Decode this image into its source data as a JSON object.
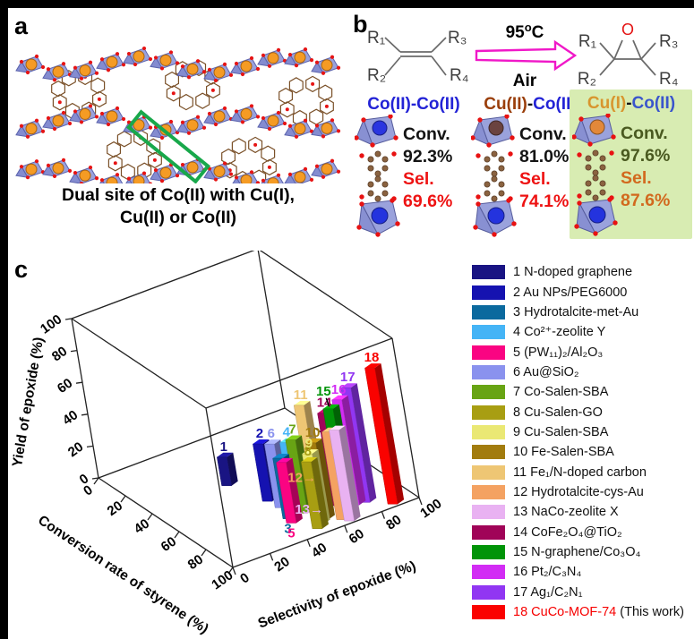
{
  "panel_a": {
    "label": "a",
    "caption_line1": "Dual site of Co(II) with Cu(I),",
    "caption_line2": "Cu(II) or Co(II)",
    "highlight_box_color": "#18a84b"
  },
  "panel_b": {
    "label": "b",
    "reaction": {
      "r1": "R₁",
      "r2": "R₂",
      "r3": "R₃",
      "r4": "R₄",
      "o_label": "O",
      "temp": "95",
      "temp_sup": "o",
      "temp_unit": "C",
      "air": "Air",
      "arrow_color": "#f018c8"
    },
    "catalysts": [
      {
        "title_left": "Co(II)",
        "title_left_color": "#2323d6",
        "title_sep": "-",
        "title_sep_color": "#2323d6",
        "title_right": "Co(II)",
        "title_right_color": "#2323d6",
        "conv_label": "Conv.",
        "conv_value": "92.3%",
        "conv_color": "#141414",
        "sel_label": "Sel.",
        "sel_value": "69.6%",
        "sel_color": "#ee1313",
        "top_sphere_color": "#2a35e0",
        "bottom_sphere_color": "#2433de",
        "highlighted": false
      },
      {
        "title_left": "Cu(II)",
        "title_left_color": "#9a3e0a",
        "title_sep": "-",
        "title_sep_color": "#141414",
        "title_right": "Co(II)",
        "title_right_color": "#2323d6",
        "conv_label": "Conv.",
        "conv_value": "81.0%",
        "conv_color": "#141414",
        "sel_label": "Sel.",
        "sel_value": "74.1%",
        "sel_color": "#ee1313",
        "top_sphere_color": "#6b4340",
        "bottom_sphere_color": "#2433de",
        "highlighted": false
      },
      {
        "title_left": "Cu(I)",
        "title_left_color": "#d8952e",
        "title_sep": "-",
        "title_sep_color": "#141414",
        "title_right": "Co(II)",
        "title_right_color": "#3a55cc",
        "conv_label": "Conv.",
        "conv_value": "97.6%",
        "conv_color": "#4a5a20",
        "sel_label": "Sel.",
        "sel_value": "87.6%",
        "sel_color": "#d2691e",
        "top_sphere_color": "#e2883a",
        "bottom_sphere_color": "#2433de",
        "highlighted": true,
        "highlight_bg": "#d8ecb2"
      }
    ]
  },
  "panel_c": {
    "label": "c"
  },
  "chart_data": {
    "type": "bar",
    "projection": "3d-bars",
    "x_axis": {
      "label": "Conversion rate of styrene (%)",
      "range": [
        0,
        100
      ],
      "ticks": [
        0,
        20,
        40,
        60,
        80,
        100
      ]
    },
    "y_axis": {
      "label": "Selectivity of epoxide (%)",
      "range": [
        0,
        100
      ],
      "ticks": [
        0,
        20,
        40,
        60,
        80,
        100
      ]
    },
    "z_axis": {
      "label": "Yield of epoxide (%)",
      "range": [
        0,
        100
      ],
      "ticks": [
        0,
        20,
        40,
        60,
        80,
        100
      ]
    },
    "legend_position": "right",
    "series": [
      {
        "id": 1,
        "name": "N-doped graphene",
        "color": "#191483",
        "conversion": 40,
        "selectivity": 40,
        "yield": 18,
        "label_pos": "top"
      },
      {
        "id": 2,
        "name": "Au NPs/PEG6000",
        "color": "#1512b0",
        "conversion": 62,
        "selectivity": 46,
        "yield": 36,
        "label_pos": "top"
      },
      {
        "id": 3,
        "name": "Hydrotalcite-met-Au",
        "color": "#0b699e",
        "conversion": 80,
        "selectivity": 44,
        "yield": 38,
        "label_pos": "bottom"
      },
      {
        "id": 4,
        "name": "Co²⁺-zeolite Y",
        "color": "#45b4f6",
        "conversion": 78,
        "selectivity": 50,
        "yield": 44,
        "label_pos": "top"
      },
      {
        "id": 5,
        "name": "(PW₁₁)₂/Al₂O₃",
        "color": "#fa0482",
        "conversion": 84,
        "selectivity": 43,
        "yield": 38,
        "label_pos": "bottom"
      },
      {
        "id": 6,
        "name": "Au@SiO₂",
        "color": "#8a92ee",
        "conversion": 70,
        "selectivity": 47,
        "yield": 40,
        "label_pos": "top"
      },
      {
        "id": 7,
        "name": "Co-Salen-SBA",
        "color": "#68a414",
        "conversion": 80,
        "selectivity": 52,
        "yield": 46,
        "label_pos": "top"
      },
      {
        "id": 8,
        "name": "Cu-Salen-GO",
        "color": "#a89e12",
        "conversion": 95,
        "selectivity": 49,
        "yield": 42,
        "label_pos": "top"
      },
      {
        "id": 9,
        "name": "Cu-Salen-SBA",
        "color": "#eae874",
        "conversion": 92,
        "selectivity": 52,
        "yield": 44,
        "label_pos": "top"
      },
      {
        "id": 10,
        "name": "Fe-Salen-SBA",
        "color": "#a27c0e",
        "conversion": 90,
        "selectivity": 56,
        "yield": 48,
        "label_pos": "top"
      },
      {
        "id": 11,
        "name": "Fe₁/N-doped carbon",
        "color": "#eec674",
        "conversion": 72,
        "selectivity": 64,
        "yield": 58,
        "label_pos": "top"
      },
      {
        "id": 12,
        "name": "Hydrotalcite-cys-Au",
        "color": "#f4a262",
        "conversion": 95,
        "selectivity": 62,
        "yield": 55,
        "label_pos": "left-arrow"
      },
      {
        "id": 13,
        "name": "NaCo-zeolite X",
        "color": "#e9b2f2",
        "conversion": 98,
        "selectivity": 64,
        "yield": 57,
        "label_pos": "left-arrow"
      },
      {
        "id": 14,
        "name": "CoFe₂O₄@TiO₂",
        "color": "#a00458",
        "conversion": 84,
        "selectivity": 68,
        "yield": 58,
        "label_pos": "top"
      },
      {
        "id": 15,
        "name": "N-graphene/Co₃O₄",
        "color": "#019408",
        "conversion": 86,
        "selectivity": 70,
        "yield": 61,
        "label_pos": "top-arrow"
      },
      {
        "id": 16,
        "name": "Pt₂/C₃N₄",
        "color": "#d22cf4",
        "conversion": 88,
        "selectivity": 74,
        "yield": 66,
        "label_pos": "top"
      },
      {
        "id": 17,
        "name": "Ag₁/C₂N₁",
        "color": "#9136f2",
        "conversion": 89,
        "selectivity": 79,
        "yield": 72,
        "label_pos": "top"
      },
      {
        "id": 18,
        "name": "CuCo-MOF-74",
        "color": "#fa0200",
        "conversion": 97.6,
        "selectivity": 87.6,
        "yield": 85.5,
        "label_pos": "top",
        "name_color": "#f70000",
        "suffix": " (This work)"
      }
    ]
  }
}
